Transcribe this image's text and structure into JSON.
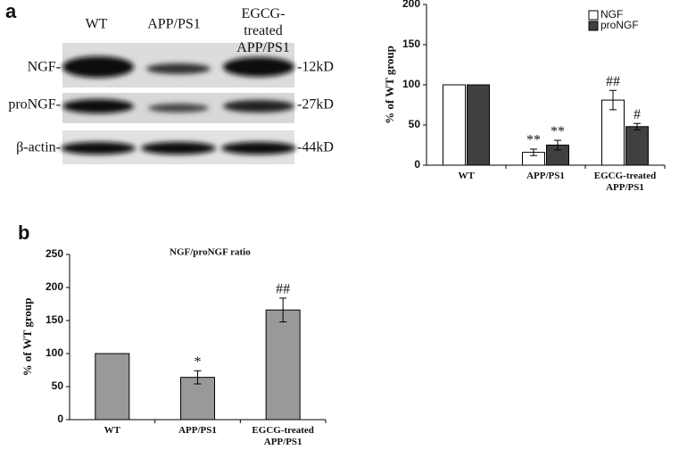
{
  "panel_labels": [
    "a",
    "b"
  ],
  "blot": {
    "lanes": [
      "WT",
      "APP/PS1",
      "EGCG-treated APP/PS1"
    ],
    "rows": [
      {
        "label": "NGF-",
        "size": "-12kD"
      },
      {
        "label": "proNGF-",
        "size": "-27kD"
      },
      {
        "label": "β-actin-",
        "size": "-44kD"
      }
    ]
  },
  "chart_data": [
    {
      "type": "bar",
      "ylabel": "% of WT group",
      "categories": [
        "WT",
        "APP/PS1",
        "EGCG-treated APP/PS1"
      ],
      "series": [
        {
          "name": "NGF",
          "color": "#ffffff",
          "values": [
            100,
            16,
            81
          ],
          "errors": [
            null,
            4,
            12
          ],
          "annotations": [
            null,
            "**",
            "##"
          ]
        },
        {
          "name": "proNGF",
          "color": "#404040",
          "values": [
            100,
            25,
            48
          ],
          "errors": [
            null,
            6,
            4
          ],
          "annotations": [
            null,
            "**",
            "#"
          ]
        }
      ],
      "ylim": [
        0,
        200
      ],
      "yticks": [
        0,
        50,
        100,
        150,
        200
      ],
      "legend": "upper right"
    },
    {
      "type": "bar",
      "title": "NGF/proNGF ratio",
      "ylabel": "% of WT group",
      "categories": [
        "WT",
        "APP/PS1",
        "EGCG-treated APP/PS1"
      ],
      "series": [
        {
          "color": "#999999",
          "values": [
            100,
            64,
            166
          ],
          "errors": [
            null,
            10,
            18
          ],
          "annotations": [
            null,
            "*",
            "##"
          ]
        }
      ],
      "ylim": [
        0,
        250
      ],
      "yticks": [
        0,
        50,
        100,
        150,
        200,
        250
      ]
    }
  ]
}
